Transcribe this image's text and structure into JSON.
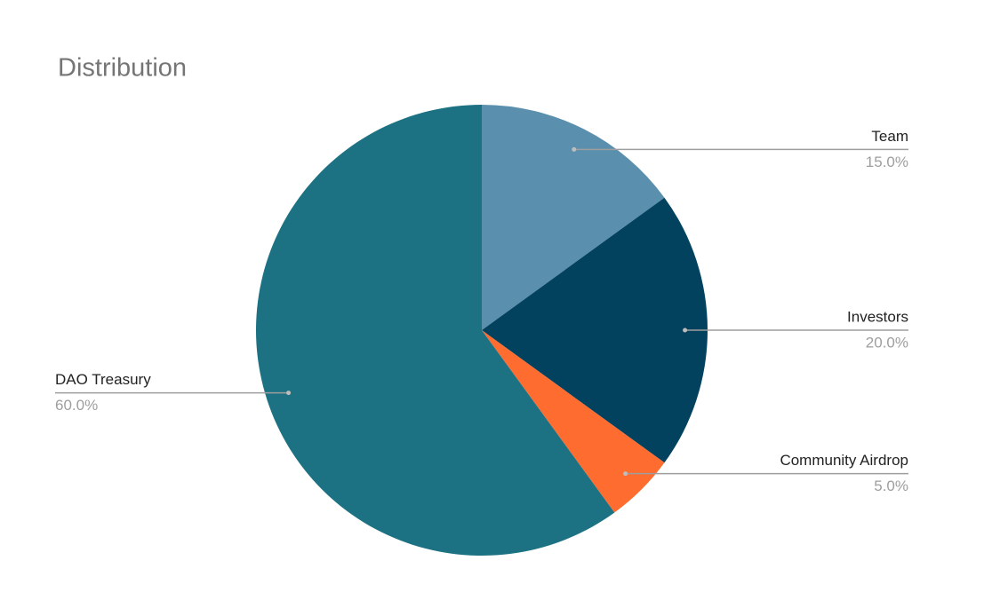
{
  "chart_data": {
    "type": "pie",
    "title": "Distribution",
    "categories": [
      "Team",
      "Investors",
      "Community Airdrop",
      "DAO Treasury"
    ],
    "values": [
      15,
      20,
      5,
      60
    ],
    "value_labels": [
      "15.0%",
      "20.0%",
      "5.0%",
      "60.0%"
    ],
    "colors": [
      "#5a8fad",
      "#02425f",
      "#fe6c30",
      "#1c7282"
    ]
  }
}
